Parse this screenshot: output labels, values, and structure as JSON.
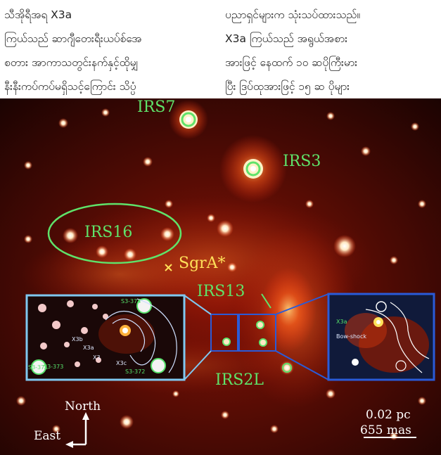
{
  "paragraph": {
    "left_lines": [
      "သီအိုရီအရ X3a",
      "ကြယ်သည် ဆာဂျီတေးရီးယပ်စ်အေ",
      "စတား အာကာသတွင်းနက်နှင့်ထိုမျှ",
      "နီးနီးကပ်ကပ်မရှိသင့်ကြောင်း သိပ္ပံ"
    ],
    "right_lines": [
      "ပညာရှင်များက သုံးသပ်ထားသည်။",
      "X3a ကြယ်သည် အရွယ်အစား",
      "အားဖြင့် နေထက် ၁၀ ဆပိုကြီးမား",
      "ပြီး ဒြပ်ထုအားဖြင့် ၁၅ ဆ ပိုများ"
    ]
  },
  "figure": {
    "labels": {
      "irs7": "IRS7",
      "irs3": "IRS3",
      "irs16": "IRS16",
      "sgra": "SgrA*",
      "irs13": "IRS13",
      "irs2l": "IRS2L"
    },
    "compass": {
      "north": "North",
      "east": "East"
    },
    "scale": {
      "pc": "0.02 pc",
      "mas": "655 mas"
    },
    "inset_left": {
      "labels": [
        "X3b",
        "X3a",
        "X3",
        "X3c",
        "S3-374",
        "S3-373",
        "S3-372",
        "S3-371"
      ]
    },
    "inset_right": {
      "labels": [
        "X3a",
        "Bow-shock"
      ]
    }
  }
}
